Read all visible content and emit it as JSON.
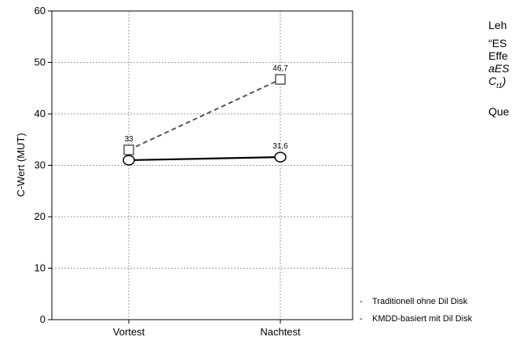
{
  "chart_data": {
    "type": "line",
    "title": "",
    "xlabel": "",
    "ylabel": "C-Wert (MUT)",
    "categories": [
      "Vortest",
      "Nachtest"
    ],
    "ylim": [
      0,
      60
    ],
    "yticks": [
      0,
      10,
      20,
      30,
      40,
      50,
      60
    ],
    "grid": true,
    "series": [
      {
        "name": "Traditionell ohne Dil Disk",
        "values": [
          33,
          46.7
        ],
        "value_labels": [
          "33",
          "46,7"
        ],
        "marker": "square",
        "line_style": "dashed",
        "color": "#555555"
      },
      {
        "name": "KMDD-basiert mit Dil Disk",
        "values": [
          31,
          31.6
        ],
        "value_labels": [
          "",
          "31,6"
        ],
        "marker": "circle",
        "line_style": "solid",
        "color": "#000000"
      }
    ],
    "legend_position": "bottom-right"
  },
  "side_text": {
    "line1": "Leh",
    "line2": "“ES",
    "line3": "Effe",
    "line4": "aES",
    "line5": "C",
    "line5_sub": "t1",
    "line5_tail": ")",
    "line6": "Que"
  }
}
